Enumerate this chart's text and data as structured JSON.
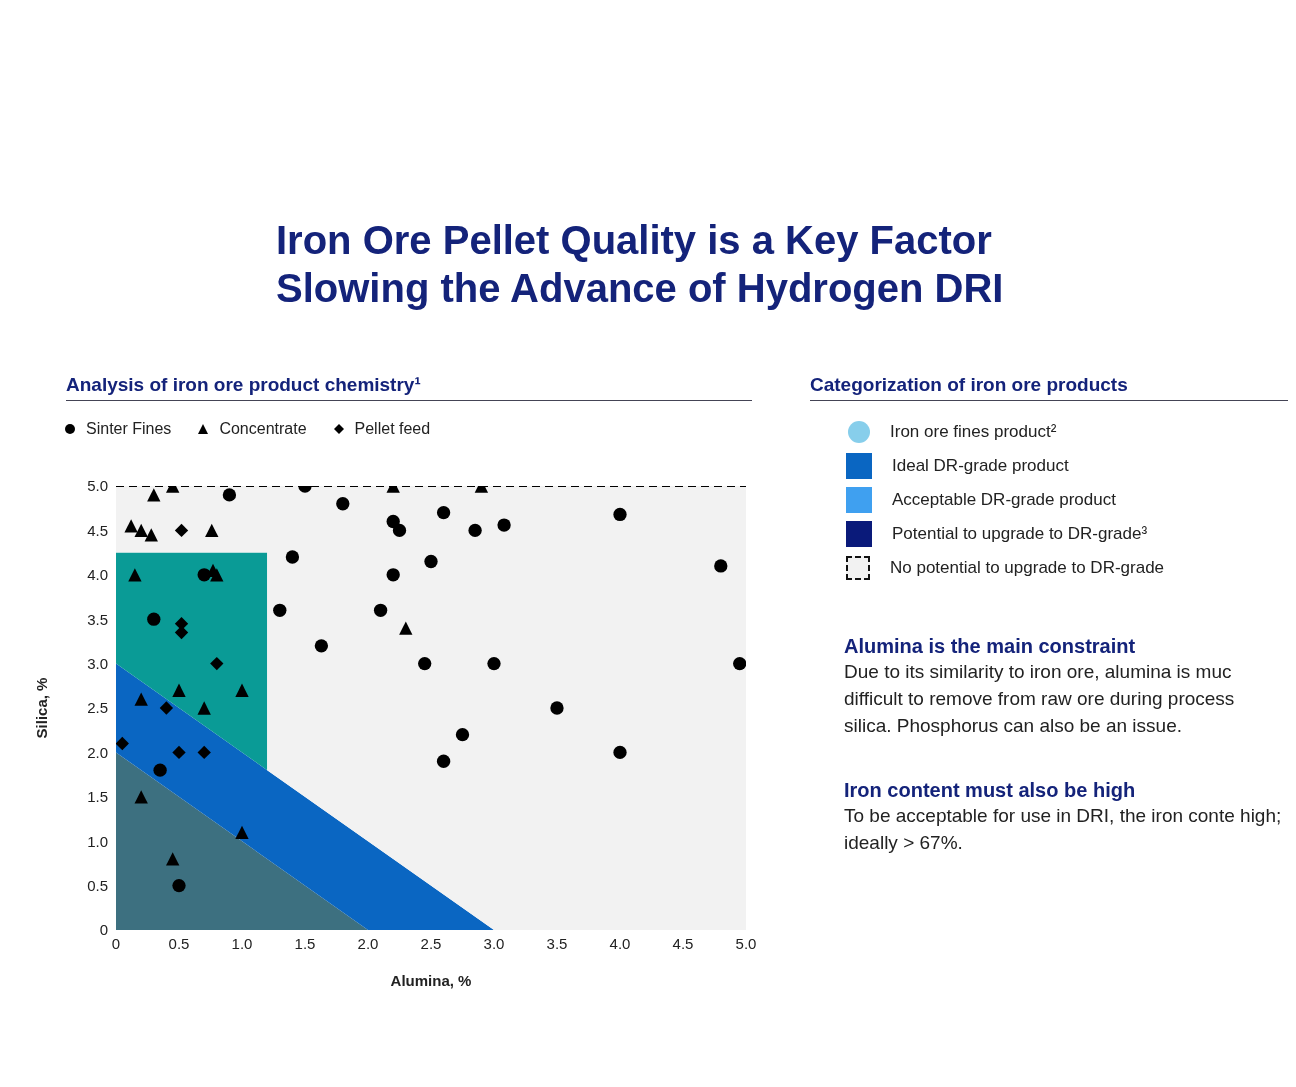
{
  "chart_data": [
    {
      "type": "scatter",
      "title": "Iron Ore Pellet Quality is a Key Factor Slowing the Advance of Hydrogen DRI",
      "subtitle": "Analysis of iron ore product chemistry¹",
      "xlabel": "Alumina, %",
      "ylabel": "Silica, %",
      "xlim": [
        0,
        5
      ],
      "xticks": [
        {
          "value": 0,
          "label": "0"
        },
        0.5,
        {
          "value": 1,
          "label": "1.0"
        },
        1.5,
        {
          "value": 2,
          "label": "2.0"
        },
        2.5,
        {
          "value": 3,
          "label": "3.0"
        },
        3.5,
        {
          "value": 4,
          "label": "4.0"
        },
        4.5,
        {
          "value": 5,
          "label": "5.0"
        }
      ],
      "ylim": [
        0,
        5
      ],
      "yticks": [
        {
          "value": 0,
          "label": "0"
        },
        0.5,
        {
          "value": 1,
          "label": "1.0"
        },
        1.5,
        {
          "value": 2,
          "label": "2.0"
        },
        2.5,
        {
          "value": 3,
          "label": "3.0"
        },
        3.5,
        {
          "value": 4,
          "label": "4.0"
        },
        4.5,
        {
          "value": 5,
          "label": "5.0"
        }
      ],
      "x": [
        0,
        1.2,
        1.2,
        2,
        3,
        5
      ],
      "stacked": true,
      "legend": "top left",
      "series": [
        {
          "type": "area",
          "color": "#3d7080",
          "values": [
            2,
            0.8,
            0.8,
            0,
            0,
            0
          ]
        },
        {
          "type": "area",
          "color": "#0a66c2",
          "values": [
            1,
            1,
            1,
            1,
            0,
            0
          ]
        },
        {
          "type": "area",
          "color": "#0a9b96",
          "values": [
            1.25,
            2.45,
            0,
            0,
            0,
            0
          ]
        },
        {
          "type": "area",
          "color": "#f2f2f2",
          "line_style": "dashed",
          "values": [
            0.75,
            0.75,
            3.2,
            4,
            5,
            5
          ]
        },
        {
          "type": "scatter",
          "name": "Sinter Fines",
          "color": "#000000",
          "marker": "circle",
          "x": [
            0.9,
            1.5,
            1.8,
            2.6,
            2.2,
            2.25,
            1.4,
            2.5,
            2.2,
            0.7,
            1.3,
            2.1,
            0.3,
            1.63,
            2.45,
            2.85,
            3.08,
            4.0,
            4.8,
            3.0,
            4.95,
            3.5,
            2.75,
            2.6,
            4.0,
            0.35,
            0.5
          ],
          "values": [
            4.9,
            5.0,
            4.8,
            4.7,
            4.6,
            4.5,
            4.2,
            4.15,
            4.0,
            4.0,
            3.6,
            3.6,
            3.5,
            3.2,
            3.0,
            4.5,
            4.56,
            4.68,
            4.1,
            3.0,
            3.0,
            2.5,
            2.2,
            1.9,
            2.0,
            1.8,
            0.5
          ]
        },
        {
          "type": "scatter",
          "name": "Concentrate",
          "color": "#000000",
          "marker": "triangle",
          "x": [
            0.3,
            0.45,
            2.2,
            2.9,
            0.12,
            0.2,
            0.28,
            0.76,
            0.15,
            0.77,
            0.8,
            2.3,
            0.5,
            1.0,
            0.2,
            0.7,
            0.2,
            1.0,
            0.45
          ],
          "values": [
            4.9,
            5.0,
            5.0,
            5.0,
            4.55,
            4.5,
            4.45,
            4.5,
            4.0,
            4.05,
            4.0,
            3.4,
            2.7,
            2.7,
            2.6,
            2.5,
            1.5,
            1.1,
            0.8
          ]
        },
        {
          "type": "scatter",
          "name": "Pellet feed",
          "color": "#000000",
          "marker": "diamond",
          "x": [
            0.52,
            0.52,
            0.52,
            0.8,
            0.4,
            0.05,
            0.5,
            0.7
          ],
          "values": [
            4.5,
            3.45,
            3.35,
            3.0,
            2.5,
            2.1,
            2.0,
            2.0
          ]
        }
      ]
    },
    {
      "type": "other",
      "title": "Categorization of iron ore products",
      "categories": [
        "Iron ore fines product²",
        "Ideal DR-grade product",
        "Acceptable DR-grade product",
        "Potential to upgrade to DR-grade³",
        "No potential to upgrade to DR-grade"
      ],
      "colors": [
        "#87ceeb",
        "#0a66c2",
        "#3fa0f0",
        "#0a1a7a",
        null
      ],
      "annotations": [
        "Alumina is the main constraint",
        "Due to its similarity to iron ore, alumina is muc difficult to remove from raw ore during process silica. Phosphorus can also be an issue.",
        "Iron content must also be high",
        "To be acceptable for use in DRI, the iron conte high; ideally > 67%."
      ]
    }
  ]
}
